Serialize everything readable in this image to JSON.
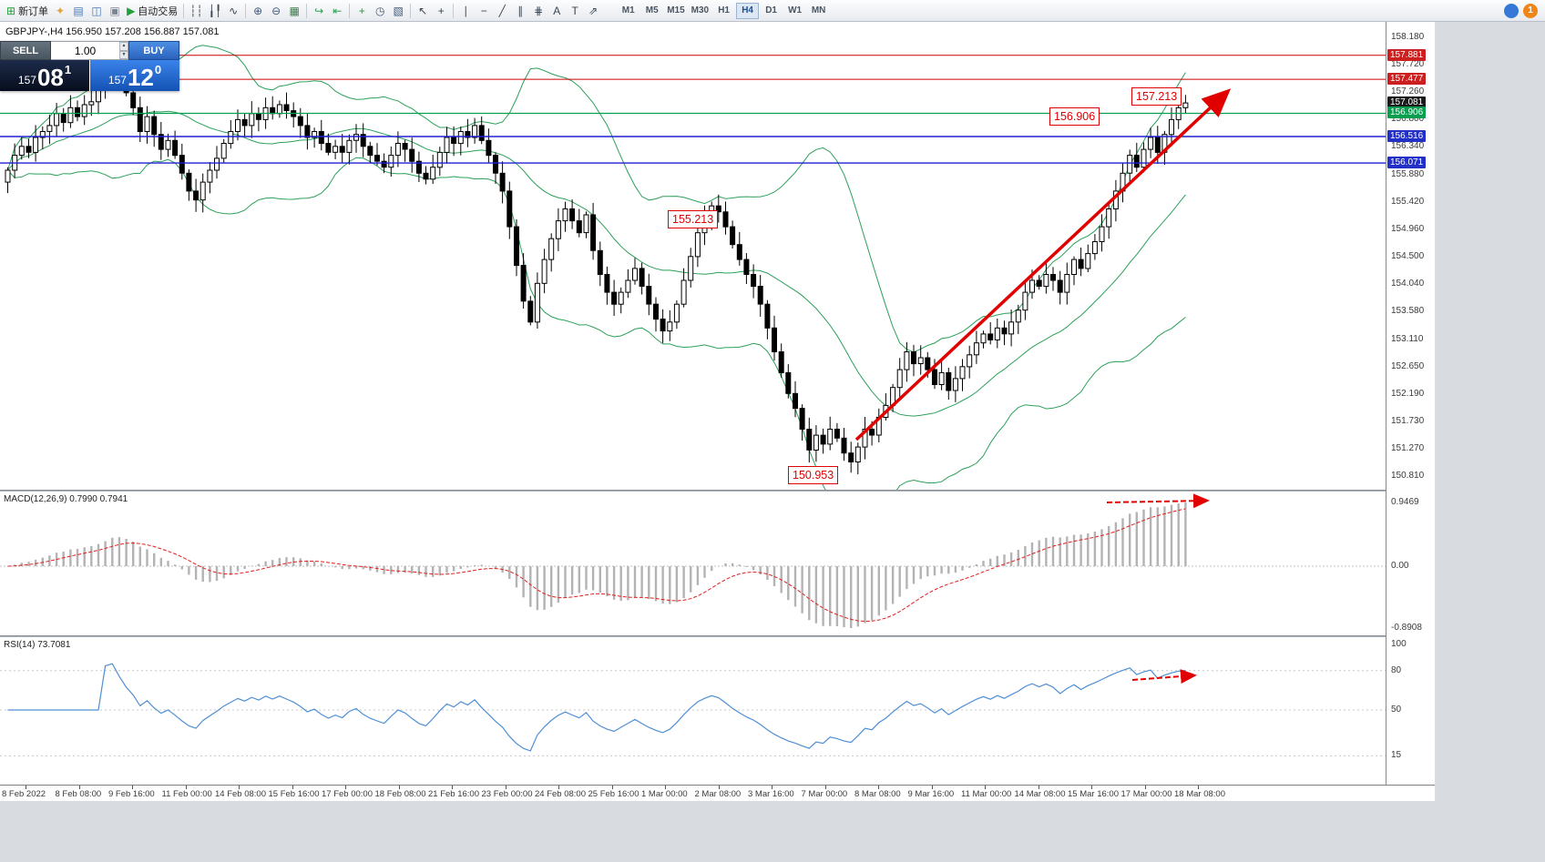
{
  "colors": {
    "bands": "#2ca05a",
    "hist": "#b3b3b3",
    "signal": "#e02020",
    "rsi": "#4f8fd4",
    "annotation": "#e00000",
    "buy_blue": "#1e62cf",
    "bid_navy": "#0d1b38"
  },
  "toolbar": {
    "new_order_label": "新订单",
    "autotrading_label": "自动交易",
    "icons_a": [
      {
        "name": "strategy-tester-icon",
        "glyph": "✦",
        "color": "#e2a23c"
      },
      {
        "name": "market-watch-icon",
        "glyph": "▤",
        "color": "#4a79b8"
      },
      {
        "name": "data-window-icon",
        "glyph": "◫",
        "color": "#4a79b8"
      },
      {
        "name": "terminal-icon",
        "glyph": "▣",
        "color": "#7c8692"
      }
    ],
    "icons_b": [
      {
        "sep": true
      },
      {
        "name": "bar-chart-icon",
        "glyph": "┆┆"
      },
      {
        "name": "candlestick-chart-icon",
        "glyph": "╽╿"
      },
      {
        "name": "line-chart-icon",
        "glyph": "∿"
      },
      {
        "sep": true
      },
      {
        "name": "zoom-in-icon",
        "glyph": "⊕",
        "color": "#3f5a78"
      },
      {
        "name": "zoom-out-icon",
        "glyph": "⊖",
        "color": "#3f5a78"
      },
      {
        "name": "tile-windows-icon",
        "glyph": "▦",
        "color": "#3f7a4f"
      },
      {
        "sep": true
      },
      {
        "name": "auto-scroll-icon",
        "glyph": "↪",
        "color": "#2e9e4f"
      },
      {
        "name": "chart-shift-icon",
        "glyph": "⇤",
        "color": "#2e9e4f"
      },
      {
        "sep": true
      },
      {
        "name": "indicators-icon",
        "glyph": "+",
        "color": "#1fa038"
      },
      {
        "name": "periods-icon",
        "glyph": "◷",
        "color": "#3f5a78"
      },
      {
        "name": "templates-icon",
        "glyph": "▧",
        "color": "#3f5a78"
      },
      {
        "sep": true
      },
      {
        "name": "cursor-icon",
        "glyph": "↖"
      },
      {
        "name": "crosshair-icon",
        "glyph": "+"
      },
      {
        "sep": true
      },
      {
        "name": "vertical-line-icon",
        "glyph": "∣"
      },
      {
        "name": "horizontal-line-icon",
        "glyph": "−"
      },
      {
        "name": "trendline-icon",
        "glyph": "╱"
      },
      {
        "name": "channel-icon",
        "glyph": "∥"
      },
      {
        "name": "fibonacci-icon",
        "glyph": "⋕"
      },
      {
        "name": "text-icon",
        "glyph": "A"
      },
      {
        "name": "label-icon",
        "glyph": "T"
      },
      {
        "name": "arrows-tool-icon",
        "glyph": "⇗"
      }
    ],
    "timeframes": [
      "M1",
      "M5",
      "M15",
      "M30",
      "H1",
      "H4",
      "D1",
      "W1",
      "MN"
    ],
    "active_timeframe": "H4",
    "notification_count": "1"
  },
  "chart": {
    "symbol_line": "GBPJPY-,H4  156.950 157.208 156.887 157.081"
  },
  "trade": {
    "sell_label": "SELL",
    "buy_label": "BUY",
    "volume": "1.00",
    "bid_prefix": "157",
    "bid_big": "08",
    "bid_sup": "1",
    "ask_prefix": "157",
    "ask_big": "12",
    "ask_sup": "0"
  },
  "price_axis": {
    "ticks": [
      "158.180",
      "157.720",
      "157.260",
      "156.800",
      "156.340",
      "155.880",
      "155.420",
      "154.960",
      "154.500",
      "154.040",
      "153.580",
      "153.110",
      "152.650",
      "152.190",
      "151.730",
      "151.270",
      "150.810"
    ],
    "tags": [
      {
        "text": "157.881",
        "color": "#cc2020"
      },
      {
        "text": "157.477",
        "color": "#cc2020"
      },
      {
        "text": "157.081",
        "color": "#1a1a1a"
      },
      {
        "text": "156.906",
        "color": "#089e50"
      },
      {
        "text": "156.516",
        "color": "#2330c8"
      },
      {
        "text": "156.071",
        "color": "#2330c8"
      }
    ]
  },
  "macd": {
    "label": "MACD(12,26,9) 0.7990 0.7941",
    "axis": [
      "0.9469",
      "0.00",
      "-0.8908"
    ]
  },
  "rsi": {
    "label": "RSI(14) 73.7081",
    "axis": [
      "100",
      "80",
      "50",
      "15"
    ]
  },
  "time_axis": [
    "8 Feb 2022",
    "8 Feb 08:00",
    "9 Feb 16:00",
    "11 Feb 00:00",
    "14 Feb 08:00",
    "15 Feb 16:00",
    "17 Feb 00:00",
    "18 Feb 08:00",
    "21 Feb 16:00",
    "23 Feb 00:00",
    "24 Feb 08:00",
    "25 Feb 16:00",
    "1 Mar 00:00",
    "2 Mar 08:00",
    "3 Mar 16:00",
    "7 Mar 00:00",
    "8 Mar 08:00",
    "9 Mar 16:00",
    "11 Mar 00:00",
    "14 Mar 08:00",
    "15 Mar 16:00",
    "17 Mar 00:00",
    "18 Mar 08:00"
  ],
  "annotations": {
    "callouts": [
      {
        "text": "156.906"
      },
      {
        "text": "157.213"
      },
      {
        "text": "155.213"
      },
      {
        "text": "150.953"
      }
    ]
  },
  "chart_data": {
    "type": "candlestick",
    "symbol": "GBPJPY",
    "timeframe": "H4",
    "title": "GBPJPY-,H4",
    "ohlc_current": {
      "open": 156.95,
      "high": 157.208,
      "low": 156.887,
      "close": 157.081
    },
    "ylim": [
      150.66,
      158.35
    ],
    "candles": {
      "first_open": 155.75,
      "closes": [
        155.95,
        156.2,
        156.35,
        156.25,
        156.5,
        156.6,
        156.7,
        156.9,
        156.75,
        157.0,
        156.85,
        157.05,
        157.1,
        157.35,
        157.6,
        157.85,
        157.55,
        157.25,
        157.0,
        156.6,
        156.85,
        156.55,
        156.3,
        156.45,
        156.2,
        155.9,
        155.6,
        155.45,
        155.75,
        155.95,
        156.15,
        156.4,
        156.6,
        156.8,
        156.7,
        156.9,
        156.8,
        157.0,
        156.9,
        157.05,
        156.95,
        156.85,
        156.7,
        156.5,
        156.6,
        156.4,
        156.25,
        156.35,
        156.25,
        156.45,
        156.55,
        156.35,
        156.2,
        156.1,
        156.0,
        156.2,
        156.4,
        156.3,
        156.1,
        155.9,
        155.8,
        156.0,
        156.25,
        156.5,
        156.4,
        156.6,
        156.5,
        156.7,
        156.45,
        156.2,
        155.9,
        155.6,
        155.0,
        154.35,
        153.75,
        153.4,
        154.05,
        154.45,
        154.8,
        155.1,
        155.3,
        155.1,
        154.9,
        155.2,
        154.6,
        154.2,
        153.9,
        153.7,
        153.9,
        154.1,
        154.3,
        154.0,
        153.7,
        153.45,
        153.25,
        153.4,
        153.7,
        154.1,
        154.5,
        154.9,
        155.15,
        155.35,
        155.25,
        155.0,
        154.7,
        154.45,
        154.2,
        154.0,
        153.7,
        153.3,
        152.9,
        152.55,
        152.2,
        151.95,
        151.6,
        151.25,
        151.5,
        151.35,
        151.6,
        151.45,
        151.2,
        151.05,
        151.3,
        151.6,
        151.5,
        151.8,
        152.0,
        152.3,
        152.6,
        152.9,
        152.7,
        152.8,
        152.6,
        152.35,
        152.55,
        152.25,
        152.45,
        152.65,
        152.85,
        153.05,
        153.2,
        153.1,
        153.3,
        153.2,
        153.4,
        153.6,
        153.9,
        154.1,
        154.0,
        154.2,
        154.1,
        153.9,
        154.2,
        154.45,
        154.3,
        154.55,
        154.75,
        155.0,
        155.3,
        155.6,
        155.9,
        156.2,
        156.0,
        156.3,
        156.5,
        156.25,
        156.55,
        156.8,
        157.0,
        157.08
      ]
    },
    "indicators": {
      "bollinger": {
        "period": 20,
        "deviation": 2
      },
      "macd": {
        "fast": 12,
        "slow": 26,
        "signal": 9,
        "shown_values": [
          "0.7990",
          "0.7941"
        ]
      },
      "rsi": {
        "period": 14,
        "shown_value": "73.7081"
      }
    },
    "horizontal_lines": [
      {
        "price": 157.881,
        "color": "#cc0000",
        "w": 1
      },
      {
        "price": 157.477,
        "color": "#cc0000",
        "w": 1
      },
      {
        "price": 156.906,
        "color": "#00a050",
        "w": 1.2
      },
      {
        "price": 156.516,
        "color": "#2020d0",
        "w": 1.4
      },
      {
        "price": 156.071,
        "color": "#2020d0",
        "w": 1.4
      }
    ]
  }
}
